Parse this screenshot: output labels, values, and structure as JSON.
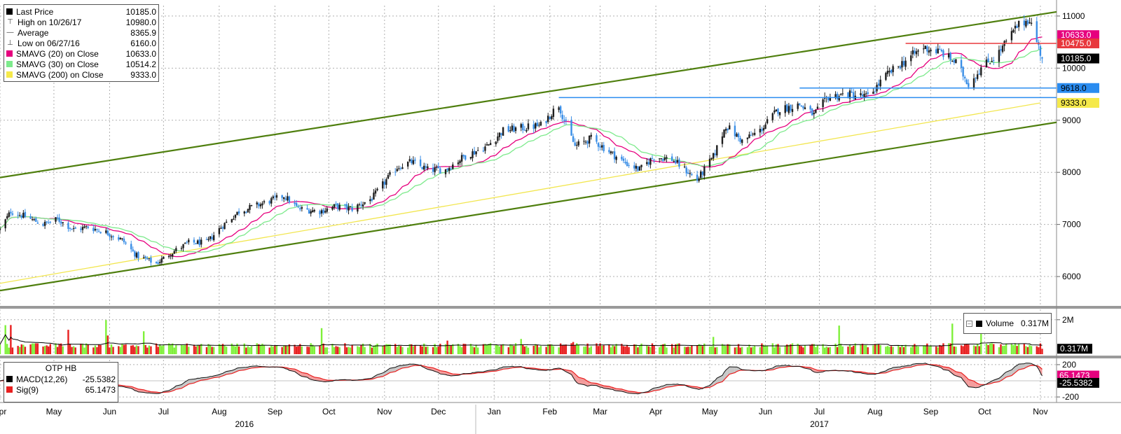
{
  "chart_data": [
    {
      "panel": "price",
      "type": "candlestick",
      "title": "",
      "ylim": [
        5450,
        11200
      ],
      "yticks": [
        "11000",
        "10000",
        "9000",
        "8000",
        "7000",
        "6000"
      ],
      "grid": true,
      "legend_position": "top-left",
      "legend": [
        {
          "label": "Last Price",
          "value": "10185.0",
          "icon": "square-black-icon",
          "color": "#000000"
        },
        {
          "label": "High on 10/26/17",
          "value": "10980.0",
          "icon": "high-marker-icon"
        },
        {
          "label": "Average",
          "value": "8365.9",
          "icon": "average-marker-icon"
        },
        {
          "label": "Low on 06/27/16",
          "value": "6160.0",
          "icon": "low-marker-icon"
        },
        {
          "label": "SMAVG (20) on Close",
          "value": "10633.0",
          "icon": "square-magenta-icon",
          "color": "#e6007e"
        },
        {
          "label": "SMAVG (30) on Close",
          "value": "10514.2",
          "icon": "square-lightgreen-icon",
          "color": "#7dea8c"
        },
        {
          "label": "SMAVG (200) on Close",
          "value": "9333.0",
          "icon": "square-yellow-icon",
          "color": "#f5e94a"
        }
      ],
      "close_anchors": [
        [
          "2016-04-01",
          6900
        ],
        [
          "2016-04-07",
          7250
        ],
        [
          "2016-04-15",
          7150
        ],
        [
          "2016-04-25",
          7000
        ],
        [
          "2016-05-03",
          7100
        ],
        [
          "2016-05-12",
          6900
        ],
        [
          "2016-05-20",
          6950
        ],
        [
          "2016-05-30",
          6850
        ],
        [
          "2016-06-08",
          6700
        ],
        [
          "2016-06-16",
          6400
        ],
        [
          "2016-06-27",
          6250
        ],
        [
          "2016-07-05",
          6450
        ],
        [
          "2016-07-15",
          6650
        ],
        [
          "2016-07-25",
          6650
        ],
        [
          "2016-08-02",
          6950
        ],
        [
          "2016-08-12",
          7250
        ],
        [
          "2016-08-25",
          7400
        ],
        [
          "2016-09-06",
          7550
        ],
        [
          "2016-09-14",
          7300
        ],
        [
          "2016-09-26",
          7250
        ],
        [
          "2016-10-05",
          7350
        ],
        [
          "2016-10-14",
          7300
        ],
        [
          "2016-10-25",
          7500
        ],
        [
          "2016-11-02",
          7850
        ],
        [
          "2016-11-08",
          8100
        ],
        [
          "2016-11-16",
          8200
        ],
        [
          "2016-11-25",
          8050
        ],
        [
          "2016-12-05",
          8050
        ],
        [
          "2016-12-15",
          8300
        ],
        [
          "2016-12-28",
          8500
        ],
        [
          "2017-01-06",
          8800
        ],
        [
          "2017-01-16",
          8850
        ],
        [
          "2017-01-27",
          8900
        ],
        [
          "2017-02-06",
          9300
        ],
        [
          "2017-02-09",
          9000
        ],
        [
          "2017-02-15",
          8500
        ],
        [
          "2017-02-24",
          8650
        ],
        [
          "2017-03-06",
          8400
        ],
        [
          "2017-03-14",
          8200
        ],
        [
          "2017-03-23",
          8050
        ],
        [
          "2017-03-31",
          8300
        ],
        [
          "2017-04-10",
          8250
        ],
        [
          "2017-04-19",
          8000
        ],
        [
          "2017-04-24",
          7850
        ],
        [
          "2017-05-03",
          8300
        ],
        [
          "2017-05-10",
          8900
        ],
        [
          "2017-05-19",
          8600
        ],
        [
          "2017-05-29",
          8800
        ],
        [
          "2017-06-08",
          9200
        ],
        [
          "2017-06-20",
          9300
        ],
        [
          "2017-06-28",
          9100
        ],
        [
          "2017-07-06",
          9450
        ],
        [
          "2017-07-17",
          9500
        ],
        [
          "2017-07-28",
          9450
        ],
        [
          "2017-08-07",
          9850
        ],
        [
          "2017-08-18",
          10150
        ],
        [
          "2017-08-28",
          10400
        ],
        [
          "2017-09-07",
          10300
        ],
        [
          "2017-09-15",
          10100
        ],
        [
          "2017-09-22",
          9700
        ],
        [
          "2017-09-29",
          10000
        ],
        [
          "2017-10-09",
          10300
        ],
        [
          "2017-10-19",
          10800
        ],
        [
          "2017-10-26",
          10950
        ],
        [
          "2017-11-02",
          10185
        ]
      ],
      "series": [
        {
          "name": "SMAVG (20) on Close",
          "window": 20,
          "color": "#e6007e"
        },
        {
          "name": "SMAVG (30) on Close",
          "window": 30,
          "color": "#7dea8c"
        },
        {
          "name": "SMAVG (200) on Close",
          "color": "#f2e64f",
          "points": [
            [
              "2016-04-01",
              5870
            ],
            [
              "2017-11-01",
              9333
            ]
          ]
        }
      ],
      "trendlines": [
        {
          "name": "upper-channel",
          "color": "#4f7f0e",
          "points": [
            [
              "2016-04-01",
              7900
            ],
            [
              "2017-11-10",
              11080
            ]
          ]
        },
        {
          "name": "lower-channel",
          "color": "#4f7f0e",
          "points": [
            [
              "2016-04-01",
              5730
            ],
            [
              "2017-11-10",
              8960
            ]
          ]
        }
      ],
      "horizontal_lines": [
        {
          "name": "resistance-10475",
          "value": 10475,
          "color": "#e8383d",
          "from": "2017-08-18",
          "label": "10475.0"
        },
        {
          "name": "level-9618",
          "value": 9618,
          "color": "#2a8cf0",
          "from": "2017-06-20",
          "label": "9618.0"
        },
        {
          "name": "level-9435",
          "value": 9435,
          "color": "#2a8cf0",
          "from": "2017-02-06"
        }
      ],
      "price_labels": [
        {
          "value": 10633,
          "text": "10633.0",
          "bg": "#e6007e",
          "fg": "#ffffff"
        },
        {
          "value": 10475,
          "text": "10475.0",
          "bg": "#e8383d",
          "fg": "#ffffff"
        },
        {
          "value": 10185,
          "text": "10185.0",
          "bg": "#000000",
          "fg": "#ffffff"
        },
        {
          "value": 9618,
          "text": "9618.0",
          "bg": "#2a8cf0",
          "fg": "#000000"
        },
        {
          "value": 9333,
          "text": "9333.0",
          "bg": "#f5e94a",
          "fg": "#000000"
        }
      ]
    },
    {
      "panel": "volume",
      "type": "bar",
      "ylim": [
        0,
        2600000
      ],
      "yticks": [
        "2M"
      ],
      "legend": [
        {
          "label": "Volume",
          "value": "0.317M",
          "icon": "square-black-icon"
        }
      ],
      "last_label": {
        "text": "0.317M",
        "bg": "#000000",
        "fg": "#ffffff"
      },
      "colors": {
        "up": "#7ff03a",
        "down": "#e81f1f",
        "average_line": "#000000"
      }
    },
    {
      "panel": "macd",
      "type": "line",
      "title": "OTP HB",
      "ylim": [
        -260,
        260
      ],
      "yticks": [
        "200",
        "-200"
      ],
      "legend": [
        {
          "label": "MACD(12,26)",
          "value": "-25.5382",
          "icon": "square-black-icon",
          "color": "#000000"
        },
        {
          "label": "Sig(9)",
          "value": "65.1473",
          "icon": "square-red-icon",
          "color": "#e81f1f"
        }
      ],
      "last_labels": [
        {
          "value": 65.1473,
          "text": "65.1473",
          "bg": "#e6007e",
          "fg": "#ffffff"
        },
        {
          "value": -25.5382,
          "text": "-25.5382",
          "bg": "#000000",
          "fg": "#ffffff"
        }
      ]
    }
  ],
  "x_axis": {
    "months": [
      {
        "label": "Apr",
        "date": "2016-04-01"
      },
      {
        "label": "May",
        "date": "2016-05-01"
      },
      {
        "label": "Jun",
        "date": "2016-06-01"
      },
      {
        "label": "Jul",
        "date": "2016-07-01"
      },
      {
        "label": "Aug",
        "date": "2016-08-01"
      },
      {
        "label": "Sep",
        "date": "2016-09-01"
      },
      {
        "label": "Oct",
        "date": "2016-10-01"
      },
      {
        "label": "Nov",
        "date": "2016-11-01"
      },
      {
        "label": "Dec",
        "date": "2016-12-01"
      },
      {
        "label": "Jan",
        "date": "2017-01-01"
      },
      {
        "label": "Feb",
        "date": "2017-02-01"
      },
      {
        "label": "Mar",
        "date": "2017-03-01"
      },
      {
        "label": "Apr",
        "date": "2017-04-01"
      },
      {
        "label": "May",
        "date": "2017-05-01"
      },
      {
        "label": "Jun",
        "date": "2017-06-01"
      },
      {
        "label": "Jul",
        "date": "2017-07-01"
      },
      {
        "label": "Aug",
        "date": "2017-08-01"
      },
      {
        "label": "Sep",
        "date": "2017-09-01"
      },
      {
        "label": "Oct",
        "date": "2017-10-01"
      },
      {
        "label": "Nov",
        "date": "2017-11-01"
      }
    ],
    "years": [
      {
        "label": "2016",
        "date": "2016-08-15"
      },
      {
        "label": "2017",
        "date": "2017-07-01"
      }
    ],
    "range": [
      "2016-04-01",
      "2017-11-10"
    ]
  },
  "colors": {
    "up_candle": "#1e1e1e",
    "down_candle": "#3a8ee6",
    "grid": "#b0b0b0",
    "separator": "#9a9a9a"
  }
}
